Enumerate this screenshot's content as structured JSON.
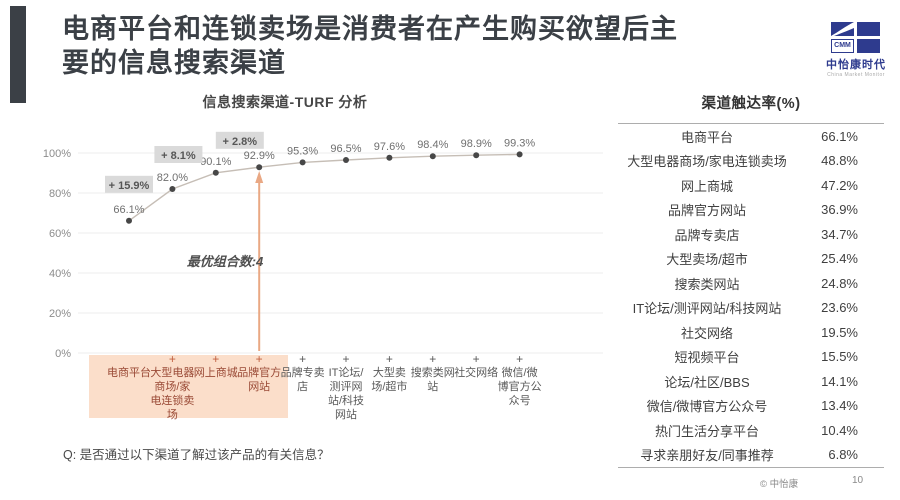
{
  "header": {
    "title_line1": "电商平台和连锁卖场是消费者在产生购买欲望后主",
    "title_line2": "要的信息搜索渠道"
  },
  "logo": {
    "abbr": "CMM",
    "name": "中怡康时代",
    "subtext": "China Market Monitor",
    "color": "#2e3b8e"
  },
  "chart_data": {
    "type": "line",
    "title": "信息搜索渠道-TURF 分析",
    "xlabel": "",
    "ylabel": "",
    "ylim": [
      0,
      100
    ],
    "grid": true,
    "legend": "none",
    "y_ticks": [
      "0%",
      "20%",
      "40%",
      "60%",
      "80%",
      "100%"
    ],
    "categories": [
      "电商平台",
      "大型电器商场/家电连锁卖场",
      "网上商城",
      "品牌官方网站",
      "品牌专卖店",
      "IT论坛/测评网站/科技网站",
      "大型卖场/超市",
      "搜索类网站",
      "社交网络",
      "微信/微博官方公众号"
    ],
    "values": [
      66.1,
      82.0,
      90.1,
      92.9,
      95.3,
      96.5,
      97.6,
      98.4,
      98.9,
      99.3
    ],
    "value_labels": [
      "66.1%",
      "82.0%",
      "90.1%",
      "92.9%",
      "95.3%",
      "96.5%",
      "97.6%",
      "98.4%",
      "98.9%",
      "99.3%"
    ],
    "plus_sign": "+",
    "increments": [
      {
        "after_index": 0,
        "label": "+ 15.9%"
      },
      {
        "after_index": 1,
        "label": "+ 8.1%"
      },
      {
        "after_index": 2,
        "label": "+ 2.8%"
      }
    ],
    "annotation": "最优组合数:4",
    "arrow_category_index": 3,
    "highlight_first_n": 4,
    "colors": {
      "line": "#c6beb6",
      "dot": "#474747",
      "arrow": "#e9a884",
      "highlight": "#fbdeca",
      "increment_bg": "#dadada",
      "increment_text": "#565656",
      "grid": "#ececec"
    }
  },
  "table": {
    "title": "渠道触达率(%)",
    "rows": [
      {
        "label": "电商平台",
        "value": "66.1%"
      },
      {
        "label": "大型电器商场/家电连锁卖场",
        "value": "48.8%"
      },
      {
        "label": "网上商城",
        "value": "47.2%"
      },
      {
        "label": "品牌官方网站",
        "value": "36.9%"
      },
      {
        "label": "品牌专卖店",
        "value": "34.7%"
      },
      {
        "label": "大型卖场/超市",
        "value": "25.4%"
      },
      {
        "label": "搜索类网站",
        "value": "24.8%"
      },
      {
        "label": "IT论坛/测评网站/科技网站",
        "value": "23.6%"
      },
      {
        "label": "社交网络",
        "value": "19.5%"
      },
      {
        "label": "短视频平台",
        "value": "15.5%"
      },
      {
        "label": "论坛/社区/BBS",
        "value": "14.1%"
      },
      {
        "label": "微信/微博官方公众号",
        "value": "13.4%"
      },
      {
        "label": "热门生活分享平台",
        "value": "10.4%"
      },
      {
        "label": "寻求亲朋好友/同事推荐",
        "value": "6.8%"
      }
    ]
  },
  "footnote": {
    "question": "Q: 是否通过以下渠道了解过该产品的有关信息？"
  },
  "footer": {
    "copyright": "© 中怡康",
    "page": "10"
  }
}
